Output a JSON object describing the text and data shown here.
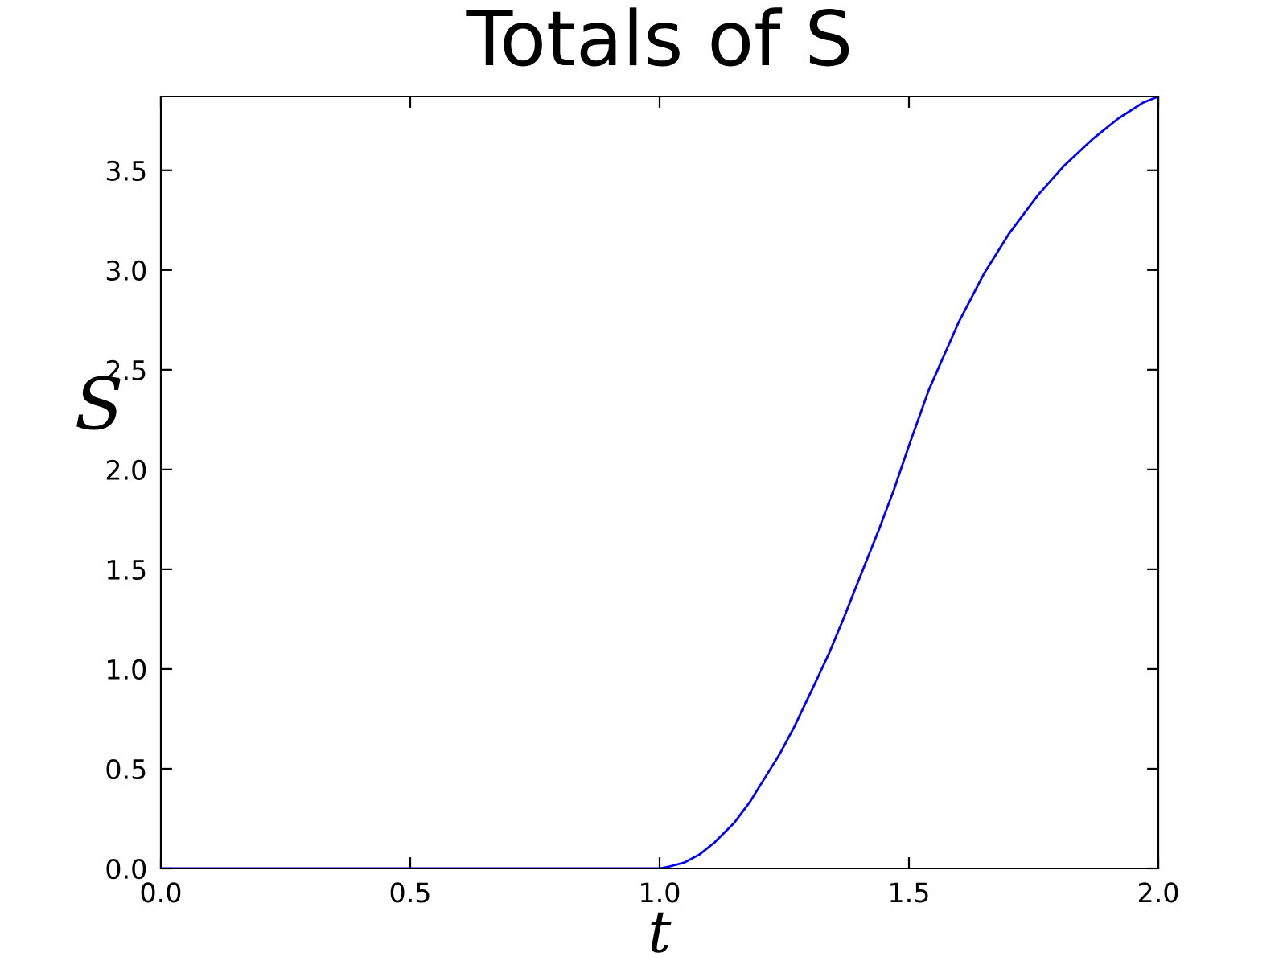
{
  "chart_data": {
    "type": "line",
    "title": "Totals of S",
    "xlabel": "t",
    "ylabel": "S",
    "x": [
      0,
      1.0,
      1.02,
      1.05,
      1.08,
      1.11,
      1.15,
      1.18,
      1.21,
      1.24,
      1.27,
      1.31,
      1.34,
      1.37,
      1.4,
      1.44,
      1.47,
      1.5,
      1.54,
      1.6,
      1.65,
      1.7,
      1.76,
      1.81,
      1.87,
      1.92,
      1.97,
      2.0
    ],
    "series": [
      {
        "color": "#0000ff",
        "values": [
          0,
          0,
          0.01,
          0.03,
          0.07,
          0.13,
          0.23,
          0.33,
          0.45,
          0.57,
          0.71,
          0.92,
          1.08,
          1.26,
          1.45,
          1.7,
          1.9,
          2.12,
          2.4,
          2.74,
          2.98,
          3.18,
          3.38,
          3.52,
          3.66,
          3.76,
          3.84,
          3.87
        ]
      }
    ],
    "xlim": [
      0,
      2.0
    ],
    "ylim": [
      0,
      3.87
    ],
    "xticks": [
      {
        "value": 0,
        "label": "0.0"
      },
      0.5,
      {
        "value": 1,
        "label": "1.0"
      },
      1.5,
      {
        "value": 2,
        "label": "2.0"
      }
    ],
    "yticks": [
      {
        "value": 0,
        "label": "0.0"
      },
      0.5,
      {
        "value": 1,
        "label": "1.0"
      },
      1.5,
      {
        "value": 2,
        "label": "2.0"
      },
      2.5,
      {
        "value": 3,
        "label": "3.0"
      },
      3.5
    ],
    "line_style": "solid"
  }
}
